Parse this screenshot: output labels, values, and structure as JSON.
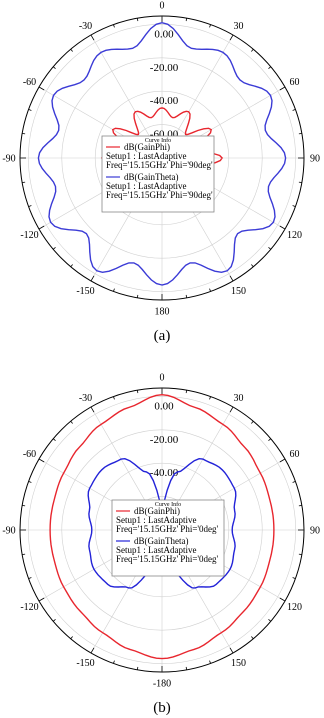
{
  "chart_data": [
    {
      "type": "polar-line",
      "caption": "(a)",
      "angle_ticks": [
        "0",
        "30",
        "60",
        "90",
        "120",
        "150",
        "180",
        "-150",
        "-120",
        "-90",
        "-60",
        "-30"
      ],
      "radial_ticks": [
        "0.00",
        "-20.00",
        "-40.00",
        "-60.00"
      ],
      "rlim": [
        -80,
        5
      ],
      "legend_title": "Curve Info",
      "series": [
        {
          "name": "dB(GainPhi)",
          "line1": "Setup1 : LastAdaptive",
          "line2": "Freq='15.15GHz' Phi='90deg'",
          "color": "#e8262e",
          "theta": [
            -180,
            -165,
            -150,
            -135,
            -120,
            -105,
            -90,
            -75,
            -60,
            -45,
            -30,
            -15,
            0,
            15,
            30,
            45,
            60,
            75,
            90,
            105,
            120,
            135,
            150,
            165
          ],
          "r": [
            -48,
            -58,
            -46,
            -62,
            -45,
            -60,
            -44,
            -65,
            -46,
            -60,
            -48,
            -55,
            -50,
            -55,
            -48,
            -60,
            -46,
            -65,
            -44,
            -60,
            -45,
            -62,
            -46,
            -58
          ]
        },
        {
          "name": "dB(GainTheta)",
          "line1": "Setup1 : LastAdaptive",
          "line2": "Freq='15.15GHz' Phi='90deg'",
          "color": "#3b3bd6",
          "theta": [
            -180,
            -165,
            -150,
            -135,
            -120,
            -105,
            -90,
            -75,
            -60,
            -45,
            -30,
            -15,
            0,
            15,
            30,
            45,
            60,
            75,
            90,
            105,
            120,
            135,
            150,
            165
          ],
          "r": [
            -4,
            -15,
            -2,
            -16,
            -3,
            -14,
            -6,
            -16,
            -5,
            -14,
            -7,
            -12,
            1,
            -12,
            -7,
            -14,
            -5,
            -16,
            -6,
            -14,
            -3,
            -16,
            -2,
            -15
          ]
        }
      ]
    },
    {
      "type": "polar-line",
      "caption": "(b)",
      "angle_ticks": [
        "0",
        "30",
        "60",
        "90",
        "120",
        "150",
        "-180",
        "-150",
        "-120",
        "-90",
        "-60",
        "-30"
      ],
      "radial_ticks": [
        "0.00",
        "-20.00",
        "-40.00",
        "-60.00"
      ],
      "rlim": [
        -80,
        5
      ],
      "legend_title": "Curve Info",
      "series": [
        {
          "name": "dB(GainPhi)",
          "line1": "Setup1 : LastAdaptive",
          "line2": "Freq='15.15GHz' Phi='0deg'",
          "color": "#e8262e",
          "theta": [
            -180,
            -165,
            -150,
            -135,
            -120,
            -105,
            -90,
            -75,
            -60,
            -45,
            -30,
            -15,
            0,
            15,
            30,
            45,
            60,
            75,
            90,
            105,
            120,
            135,
            150,
            165
          ],
          "r": [
            -3,
            -6,
            -9,
            -11,
            -12,
            -13,
            -13,
            -13,
            -12,
            -10,
            -7,
            -4,
            1,
            -4,
            -7,
            -10,
            -12,
            -13,
            -13,
            -13,
            -12,
            -11,
            -9,
            -6
          ]
        },
        {
          "name": "dB(GainTheta)",
          "line1": "Setup1 : LastAdaptive",
          "line2": "Freq='15.15GHz' Phi='0deg'",
          "color": "#2323d8",
          "theta": [
            -180,
            -165,
            -150,
            -135,
            -120,
            -105,
            -90,
            -75,
            -60,
            -45,
            -30,
            -15,
            0,
            15,
            30,
            45,
            60,
            75,
            90,
            105,
            120,
            135,
            150,
            165
          ],
          "r": [
            -68,
            -55,
            -40,
            -34,
            -33,
            -35,
            -38,
            -35,
            -30,
            -29,
            -31,
            -44,
            -68,
            -44,
            -31,
            -29,
            -30,
            -35,
            -38,
            -35,
            -33,
            -34,
            -40,
            -55
          ]
        }
      ]
    }
  ]
}
